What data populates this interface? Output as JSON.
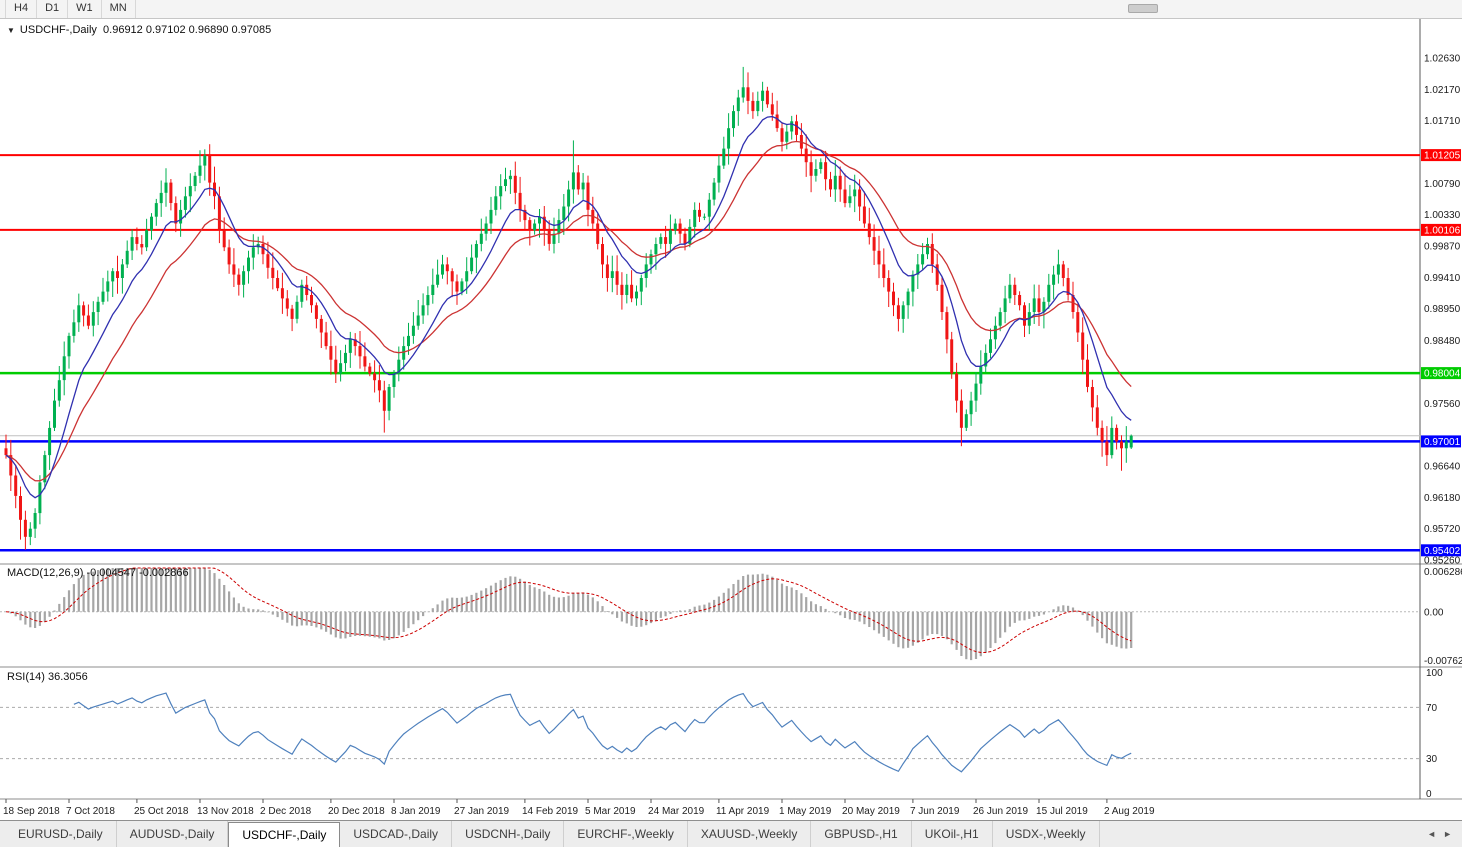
{
  "toolbar": {
    "periods": [
      "H4",
      "D1",
      "W1",
      "MN"
    ]
  },
  "panes": {
    "main_title": "USDCHF-,Daily  0.96912 0.97102 0.96890 0.97085",
    "macd_title": "MACD(12,26,9) -0.004547 -0.002866",
    "rsi_title": "RSI(14) 36.3056"
  },
  "icons": {
    "chart_menu_triangle": "▼",
    "tabs_left": "◄",
    "tabs_right": "►"
  },
  "tabs": {
    "items": [
      "EURUSD-,Daily",
      "AUDUSD-,Daily",
      "USDCHF-,Daily",
      "USDCAD-,Daily",
      "USDCNH-,Daily",
      "EURCHF-,Weekly",
      "XAUUSD-,Weekly",
      "GBPUSD-,H1",
      "UKOil-,H1",
      "USDX-,Weekly"
    ],
    "active": "USDCHF-,Daily"
  },
  "colors": {
    "bull": "#00b050",
    "bear": "#f01515",
    "ma_fast": "#3030b0",
    "ma_slow": "#cc3333",
    "macd_hist": "#a6a6a6",
    "macd_signal": "#cc0000",
    "rsi_line": "#4f81bd",
    "level_red": "#ff0000",
    "level_green": "#00cc00",
    "level_blue": "#0000ff",
    "axis_text": "#1a1a1a",
    "separator": "#8c8c8c",
    "last_price_line": "#c0c0c0"
  },
  "chart_data": {
    "type": "candlestick",
    "symbol": "USDCHF-",
    "timeframe": "Daily",
    "current_bar": {
      "open": 0.96912,
      "high": 0.97102,
      "low": 0.9689,
      "close": 0.97085
    },
    "first_open": 0.969,
    "closes": [
      0.968,
      0.965,
      0.962,
      0.9585,
      0.956,
      0.9572,
      0.9595,
      0.964,
      0.968,
      0.972,
      0.976,
      0.979,
      0.9825,
      0.9855,
      0.9875,
      0.99,
      0.9885,
      0.987,
      0.989,
      0.9905,
      0.992,
      0.9935,
      0.995,
      0.994,
      0.996,
      0.998,
      1.0,
      0.999,
      0.9985,
      1.001,
      1.003,
      1.005,
      1.0065,
      1.008,
      1.005,
      1.002,
      1.004,
      1.006,
      1.0075,
      1.009,
      1.0105,
      1.012,
      1.008,
      1.006,
      1.001,
      0.9985,
      0.996,
      0.9945,
      0.993,
      0.995,
      0.997,
      0.9985,
      0.999,
      0.9975,
      0.9955,
      0.994,
      0.9925,
      0.991,
      0.9895,
      0.988,
      0.9905,
      0.993,
      0.9915,
      0.99,
      0.988,
      0.986,
      0.984,
      0.982,
      0.98,
      0.9815,
      0.983,
      0.985,
      0.984,
      0.9825,
      0.981,
      0.98,
      0.979,
      0.9775,
      0.9745,
      0.978,
      0.98,
      0.982,
      0.984,
      0.9855,
      0.987,
      0.9885,
      0.99,
      0.9915,
      0.993,
      0.9945,
      0.996,
      0.995,
      0.9935,
      0.992,
      0.9935,
      0.995,
      0.997,
      0.999,
      1.0005,
      1.002,
      1.004,
      1.006,
      1.0075,
      1.0085,
      1.009,
      1.0065,
      1.004,
      1.0025,
      1.001,
      1.002,
      1.003,
      1.001,
      0.999,
      1.0005,
      1.0025,
      1.0045,
      1.007,
      1.0095,
      1.007,
      1.008,
      1.004,
      1.002,
      0.999,
      0.996,
      0.994,
      0.995,
      0.993,
      0.9915,
      0.993,
      0.991,
      0.992,
      0.994,
      0.996,
      0.9975,
      0.999,
      1.0,
      0.999,
      1.001,
      1.002,
      1.0005,
      0.999,
      1.0015,
      1.004,
      1.003,
      1.003,
      1.0055,
      1.008,
      1.0105,
      1.013,
      1.016,
      1.0185,
      1.0205,
      1.022,
      1.02,
      1.0185,
      1.02,
      1.0215,
      1.0195,
      1.018,
      1.016,
      1.014,
      1.0155,
      1.017,
      1.015,
      1.013,
      1.011,
      1.009,
      1.01,
      1.011,
      1.0085,
      1.007,
      1.009,
      1.007,
      1.005,
      1.006,
      1.007,
      1.0045,
      1.002,
      1.0,
      0.998,
      0.996,
      0.994,
      0.992,
      0.99,
      0.988,
      0.99,
      0.992,
      0.9945,
      0.996,
      0.9975,
      0.999,
      0.996,
      0.993,
      0.989,
      0.985,
      0.98,
      0.976,
      0.972,
      0.974,
      0.976,
      0.9785,
      0.981,
      0.983,
      0.985,
      0.987,
      0.989,
      0.991,
      0.993,
      0.9915,
      0.99,
      0.987,
      0.989,
      0.991,
      0.989,
      0.9905,
      0.993,
      0.9945,
      0.996,
      0.994,
      0.9915,
      0.989,
      0.986,
      0.982,
      0.978,
      0.975,
      0.972,
      0.97,
      0.968,
      0.972,
      0.97,
      0.969,
      0.97,
      0.97085
    ],
    "overrides": {
      "3": {
        "low": 0.9556
      },
      "4": {
        "low": 0.9541
      },
      "41": {
        "high": 1.0129
      },
      "78": {
        "low": 0.9713
      },
      "117": {
        "high": 1.0142
      },
      "152": {
        "high": 1.025
      },
      "156": {
        "high": 1.0228
      },
      "190": {
        "high": 0.9999
      },
      "197": {
        "low": 0.9693
      },
      "227": {
        "low": 0.9664
      },
      "230": {
        "low": 0.9657
      },
      "232": {
        "open": 0.96912,
        "high": 0.97102,
        "low": 0.9689
      }
    },
    "date_labels": [
      {
        "label": "18 Sep 2018",
        "bar": 0
      },
      {
        "label": "7 Oct 2018",
        "bar": 13
      },
      {
        "label": "25 Oct 2018",
        "bar": 27
      },
      {
        "label": "13 Nov 2018",
        "bar": 40
      },
      {
        "label": "2 Dec 2018",
        "bar": 53
      },
      {
        "label": "20 Dec 2018",
        "bar": 67
      },
      {
        "label": "8 Jan 2019",
        "bar": 80
      },
      {
        "label": "27 Jan 2019",
        "bar": 93
      },
      {
        "label": "14 Feb 2019",
        "bar": 107
      },
      {
        "label": "5 Mar 2019",
        "bar": 120
      },
      {
        "label": "24 Mar 2019",
        "bar": 133
      },
      {
        "label": "11 Apr 2019",
        "bar": 147
      },
      {
        "label": "1 May 2019",
        "bar": 160
      },
      {
        "label": "20 May 2019",
        "bar": 173
      },
      {
        "label": "7 Jun 2019",
        "bar": 187
      },
      {
        "label": "26 Jun 2019",
        "bar": 200
      },
      {
        "label": "15 Jul 2019",
        "bar": 213
      },
      {
        "label": "2 Aug 2019",
        "bar": 227
      }
    ],
    "y_axis_labels": [
      {
        "text": "1.02630",
        "value": 1.0263
      },
      {
        "text": "1.02170",
        "value": 1.0217
      },
      {
        "text": "1.01710",
        "value": 1.0171
      },
      {
        "text": "1.00790",
        "value": 1.0079
      },
      {
        "text": "1.00330",
        "value": 1.0033
      },
      {
        "text": "0.99870",
        "value": 0.9987
      },
      {
        "text": "0.99410",
        "value": 0.9941
      },
      {
        "text": "0.98950",
        "value": 0.9895
      },
      {
        "text": "0.98480",
        "value": 0.9848
      },
      {
        "text": "0.97560",
        "value": 0.9756
      },
      {
        "text": "0.96640",
        "value": 0.9664
      },
      {
        "text": "0.96180",
        "value": 0.9618
      },
      {
        "text": "0.95720",
        "value": 0.9572
      },
      {
        "text": "0.95260",
        "value": 0.9526
      }
    ],
    "levels": [
      {
        "text": "1.01205",
        "value": 1.01205,
        "color": "#ff0000",
        "width": 2
      },
      {
        "text": "1.00106",
        "value": 1.00106,
        "color": "#ff0000",
        "width": 2
      },
      {
        "text": "0.98004",
        "value": 0.98004,
        "color": "#00cc00",
        "width": 2.5
      },
      {
        "text": "0.97001",
        "value": 0.97001,
        "color": "#0000ff",
        "width": 2.5
      },
      {
        "text": "0.95402",
        "value": 0.95402,
        "color": "#0000ff",
        "width": 2.5
      }
    ],
    "last_price": 0.97085,
    "indicators": {
      "ma_fast_period": 10,
      "ma_slow_period": 21,
      "macd": {
        "params": "12,26,9",
        "main_value": -0.004547,
        "signal_value": -0.002866,
        "range": [
          -0.008,
          0.0066
        ],
        "axis_labels": [
          {
            "text": "0.006286",
            "value": 0.006286
          },
          {
            "text": "0.00",
            "value": 0
          },
          {
            "text": "-0.00762",
            "value": -0.00762
          }
        ]
      },
      "rsi": {
        "period": 14,
        "value": 36.3056,
        "guides": [
          70,
          30
        ],
        "axis_labels": [
          {
            "text": "100",
            "value": 100
          },
          {
            "text": "70",
            "value": 70
          },
          {
            "text": "30",
            "value": 30
          },
          {
            "text": "0",
            "value": 0
          }
        ]
      }
    }
  }
}
